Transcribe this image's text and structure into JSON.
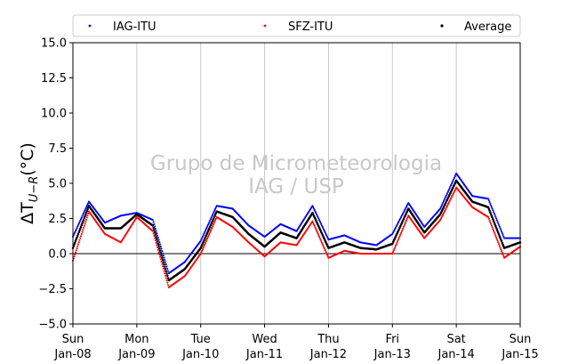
{
  "chart_data": {
    "type": "scatter",
    "title": "",
    "xlabel": "",
    "ylabel": "ΔT_{U−R}(°C)",
    "ylim": [
      -5.0,
      15.0
    ],
    "xlim": [
      "2023-01-08 00:00",
      "2023-01-15 00:00"
    ],
    "grid": "vertical only, daily",
    "legend_placement": "top, above plot, 3 columns",
    "reference_line_y": 0.0,
    "watermark": [
      "Grupo de Micrometeorologia",
      "IAG / USP"
    ],
    "y_ticks": [
      "−5.0",
      "−2.5",
      "0.0",
      "2.5",
      "5.0",
      "7.5",
      "10.0",
      "12.5",
      "15.0"
    ],
    "y_tick_values": [
      -5.0,
      -2.5,
      0.0,
      2.5,
      5.0,
      7.5,
      10.0,
      12.5,
      15.0
    ],
    "x_ticks": [
      {
        "day": "Sun",
        "date": "Jan-08"
      },
      {
        "day": "Mon",
        "date": "Jan-09"
      },
      {
        "day": "Tue",
        "date": "Jan-10"
      },
      {
        "day": "Wed",
        "date": "Jan-11"
      },
      {
        "day": "Thu",
        "date": "Jan-12"
      },
      {
        "day": "Fri",
        "date": "Jan-13"
      },
      {
        "day": "Sat",
        "date": "Jan-14"
      },
      {
        "day": "Sun",
        "date": "Jan-15"
      }
    ],
    "x_hours": [
      0,
      6,
      12,
      18,
      24,
      30,
      36,
      42,
      48,
      54,
      60,
      66,
      72,
      78,
      84,
      90,
      96,
      102,
      108,
      114,
      120,
      126,
      132,
      138,
      144,
      150,
      156,
      162,
      168
    ],
    "series": [
      {
        "name": "IAG-ITU",
        "color": "#0000ff",
        "values": [
          1.2,
          3.7,
          2.2,
          2.7,
          2.9,
          2.4,
          -1.4,
          -0.6,
          0.9,
          3.4,
          3.2,
          2.0,
          1.2,
          2.1,
          1.6,
          3.4,
          1.0,
          1.3,
          0.8,
          0.6,
          1.4,
          3.6,
          1.9,
          3.2,
          5.7,
          4.1,
          3.9,
          1.1,
          1.1
        ]
      },
      {
        "name": "SFZ-ITU",
        "color": "#ff0000",
        "values": [
          -0.5,
          3.0,
          1.4,
          0.8,
          2.6,
          1.6,
          -2.4,
          -1.6,
          0.0,
          2.6,
          1.9,
          0.8,
          -0.2,
          0.8,
          0.6,
          2.3,
          -0.3,
          0.2,
          0.0,
          0.0,
          0.0,
          2.7,
          1.1,
          2.4,
          4.7,
          3.3,
          2.6,
          -0.3,
          0.5
        ]
      },
      {
        "name": "Average",
        "color": "#000000",
        "values": [
          0.4,
          3.4,
          1.8,
          1.8,
          2.8,
          2.0,
          -1.9,
          -1.1,
          0.4,
          3.0,
          2.6,
          1.4,
          0.5,
          1.5,
          1.1,
          2.9,
          0.4,
          0.8,
          0.4,
          0.3,
          0.7,
          3.2,
          1.5,
          2.8,
          5.2,
          3.7,
          3.3,
          0.4,
          0.8
        ]
      }
    ]
  }
}
